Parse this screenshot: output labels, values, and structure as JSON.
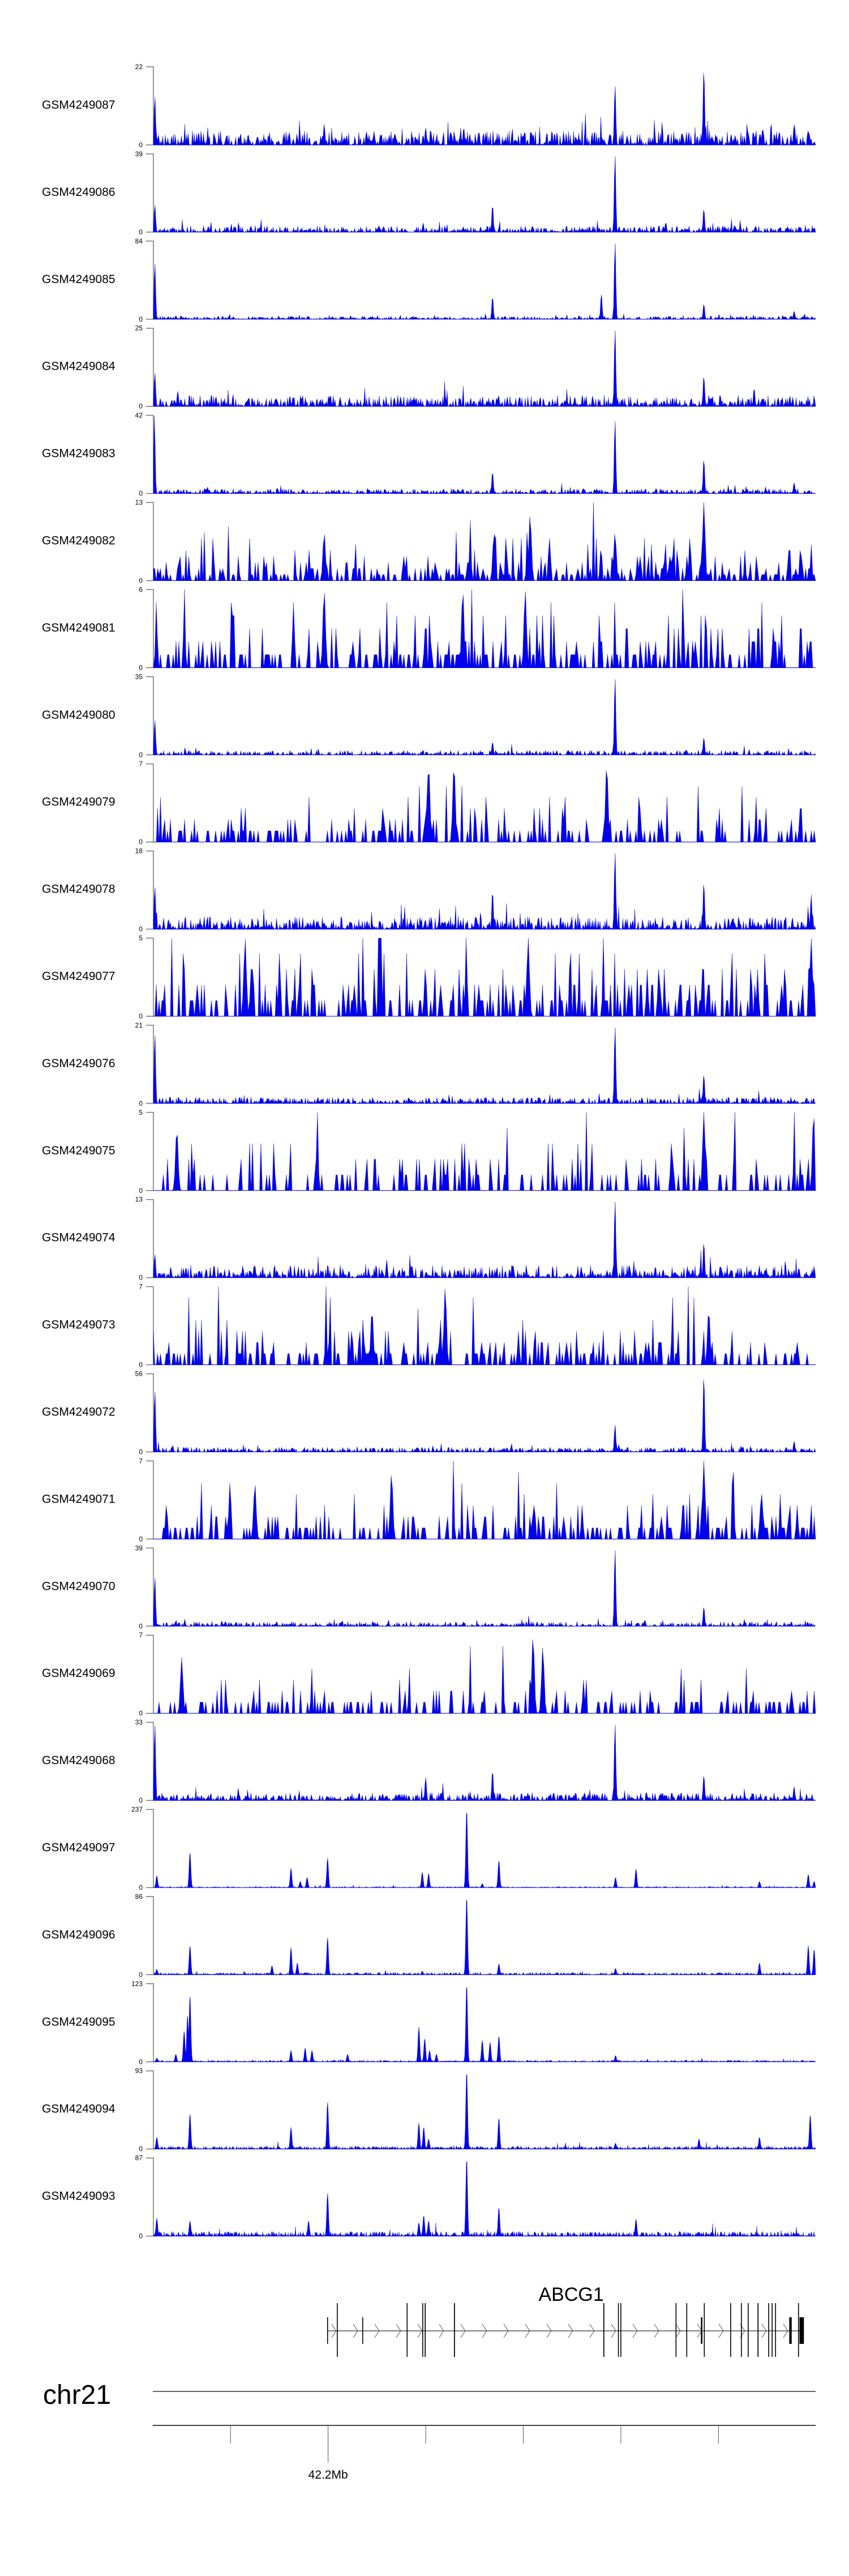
{
  "chart_data": {
    "type": "area",
    "title": "",
    "region": {
      "chrom": "chr21",
      "start_mb": 42.1642,
      "end_mb": 42.2999
    },
    "axis": {
      "ticks_mb": [
        42.18,
        42.2,
        42.22,
        42.24,
        42.26,
        42.28
      ],
      "labeled_tick_mb": 42.2,
      "labeled_tick_text": "42.2Mb"
    },
    "color": "#0000ee",
    "tracks": [
      {
        "name": "GSM4249087",
        "ymax": 22,
        "ymin": 0,
        "style": "chip",
        "noise": 0.09,
        "peaks": [
          [
            42.1645,
            14
          ],
          [
            42.1992,
            6
          ],
          [
            42.22,
            5
          ],
          [
            42.2278,
            5
          ],
          [
            42.2588,
            17
          ],
          [
            42.277,
            22
          ],
          [
            42.2955,
            6
          ]
        ]
      },
      {
        "name": "GSM4249086",
        "ymax": 39,
        "ymin": 0,
        "style": "chip",
        "noise": 0.04,
        "peaks": [
          [
            42.1645,
            14
          ],
          [
            42.2337,
            14
          ],
          [
            42.2588,
            39
          ],
          [
            42.2692,
            5
          ],
          [
            42.277,
            12
          ]
        ]
      },
      {
        "name": "GSM4249085",
        "ymax": 84,
        "ymin": 0,
        "style": "chip",
        "noise": 0.02,
        "peaks": [
          [
            42.1645,
            62
          ],
          [
            42.2337,
            25
          ],
          [
            42.256,
            28
          ],
          [
            42.2588,
            84
          ],
          [
            42.277,
            17
          ],
          [
            42.2955,
            9
          ]
        ]
      },
      {
        "name": "GSM4249084",
        "ymax": 25,
        "ymin": 0,
        "style": "chip",
        "noise": 0.07,
        "peaks": [
          [
            42.1645,
            11
          ],
          [
            42.1692,
            5
          ],
          [
            42.2588,
            25
          ],
          [
            42.277,
            10
          ],
          [
            42.2873,
            6
          ]
        ]
      },
      {
        "name": "GSM4249083",
        "ymax": 42,
        "ymin": 0,
        "style": "chip",
        "noise": 0.03,
        "peaks": [
          [
            42.1644,
            42
          ],
          [
            42.2337,
            12
          ],
          [
            42.2588,
            40
          ],
          [
            42.277,
            19
          ],
          [
            42.2955,
            6
          ]
        ]
      },
      {
        "name": "GSM4249082",
        "ymax": 13,
        "ymin": 0,
        "style": "dense",
        "noise": 1.8,
        "peaks": [
          [
            42.1992,
            8
          ],
          [
            42.234,
            8
          ],
          [
            42.2414,
            11
          ],
          [
            42.2588,
            8
          ],
          [
            42.277,
            13
          ]
        ]
      },
      {
        "name": "GSM4249081",
        "ymax": 6,
        "ymin": 0,
        "style": "dense",
        "noise": 1.3,
        "peaks": [
          [
            42.1992,
            6
          ],
          [
            42.2276,
            6
          ],
          [
            42.2404,
            6
          ]
        ]
      },
      {
        "name": "GSM4249080",
        "ymax": 35,
        "ymin": 0,
        "style": "chip",
        "noise": 0.03,
        "peaks": [
          [
            42.1645,
            16
          ],
          [
            42.2337,
            6
          ],
          [
            42.2588,
            35
          ],
          [
            42.277,
            8
          ]
        ]
      },
      {
        "name": "GSM4249079",
        "ymax": 7,
        "ymin": 0,
        "style": "dense",
        "noise": 1.0,
        "peaks": [
          [
            42.2206,
            7
          ],
          [
            42.2258,
            7
          ],
          [
            42.2571,
            7
          ]
        ]
      },
      {
        "name": "GSM4249078",
        "ymax": 18,
        "ymin": 0,
        "style": "chip",
        "noise": 0.08,
        "peaks": [
          [
            42.1645,
            10
          ],
          [
            42.2337,
            9
          ],
          [
            42.2588,
            18
          ],
          [
            42.277,
            11
          ],
          [
            42.299,
            8
          ]
        ]
      },
      {
        "name": "GSM4249077",
        "ymax": 5,
        "ymin": 0,
        "style": "dense",
        "noise": 1.2,
        "peaks": [
          [
            42.183,
            5
          ],
          [
            42.241,
            5
          ],
          [
            42.299,
            5
          ]
        ]
      },
      {
        "name": "GSM4249076",
        "ymax": 21,
        "ymin": 0,
        "style": "chip",
        "noise": 0.04,
        "peaks": [
          [
            42.1645,
            19
          ],
          [
            42.2588,
            21
          ],
          [
            42.277,
            8
          ]
        ]
      },
      {
        "name": "GSM4249075",
        "ymax": 5,
        "ymin": 0,
        "style": "dense",
        "noise": 0.9,
        "peaks": [
          [
            42.169,
            4
          ],
          [
            42.277,
            5
          ],
          [
            42.2995,
            5
          ]
        ]
      },
      {
        "name": "GSM4249074",
        "ymax": 13,
        "ymin": 0,
        "style": "chip",
        "noise": 0.08,
        "peaks": [
          [
            42.1645,
            4
          ],
          [
            42.2588,
            13
          ],
          [
            42.277,
            6
          ]
        ]
      },
      {
        "name": "GSM4249073",
        "ymax": 7,
        "ymin": 0,
        "style": "dense",
        "noise": 1.1,
        "peaks": [
          [
            42.224,
            7
          ],
          [
            42.209,
            5
          ],
          [
            42.278,
            5
          ]
        ]
      },
      {
        "name": "GSM4249072",
        "ymax": 56,
        "ymin": 0,
        "style": "chip",
        "noise": 0.03,
        "peaks": [
          [
            42.1645,
            45
          ],
          [
            42.2588,
            20
          ],
          [
            42.277,
            56
          ],
          [
            42.2955,
            8
          ]
        ]
      },
      {
        "name": "GSM4249071",
        "ymax": 7,
        "ymin": 0,
        "style": "dense",
        "noise": 1.1,
        "peaks": [
          [
            42.277,
            7
          ],
          [
            42.213,
            6
          ],
          [
            42.185,
            5
          ]
        ]
      },
      {
        "name": "GSM4249070",
        "ymax": 39,
        "ymin": 0,
        "style": "chip",
        "noise": 0.03,
        "peaks": [
          [
            42.1645,
            25
          ],
          [
            42.2588,
            39
          ],
          [
            42.277,
            10
          ]
        ]
      },
      {
        "name": "GSM4249069",
        "ymax": 7,
        "ymin": 0,
        "style": "dense",
        "noise": 0.9,
        "peaks": [
          [
            42.242,
            7
          ],
          [
            42.244,
            6
          ],
          [
            42.17,
            5
          ]
        ]
      },
      {
        "name": "GSM4249068",
        "ymax": 33,
        "ymin": 0,
        "style": "chip",
        "noise": 0.05,
        "peaks": [
          [
            42.1645,
            33
          ],
          [
            42.22,
            10
          ],
          [
            42.2337,
            13
          ],
          [
            42.2588,
            33
          ],
          [
            42.277,
            11
          ],
          [
            42.2955,
            6
          ]
        ]
      },
      {
        "name": "GSM4249097",
        "ymax": 237,
        "ymin": 0,
        "style": "atac",
        "noise": 0.01,
        "peaks": [
          [
            42.1649,
            36
          ],
          [
            42.1717,
            107
          ],
          [
            42.1924,
            59
          ],
          [
            42.1943,
            19
          ],
          [
            42.1957,
            31
          ],
          [
            42.1999,
            90
          ],
          [
            42.2193,
            47
          ],
          [
            42.2206,
            43
          ],
          [
            42.2284,
            237
          ],
          [
            42.2316,
            12
          ],
          [
            42.235,
            83
          ],
          [
            42.2589,
            31
          ],
          [
            42.2631,
            57
          ],
          [
            42.2884,
            19
          ],
          [
            42.2984,
            40
          ],
          [
            42.2996,
            19
          ]
        ]
      },
      {
        "name": "GSM4249096",
        "ymax": 86,
        "ymin": 0,
        "style": "atac",
        "noise": 0.02,
        "peaks": [
          [
            42.1649,
            6
          ],
          [
            42.1717,
            32
          ],
          [
            42.1885,
            10
          ],
          [
            42.1924,
            30
          ],
          [
            42.1937,
            13
          ],
          [
            42.1999,
            41
          ],
          [
            42.2193,
            4
          ],
          [
            42.2284,
            86
          ],
          [
            42.235,
            12
          ],
          [
            42.2589,
            7
          ],
          [
            42.2884,
            13
          ],
          [
            42.2984,
            32
          ],
          [
            42.2996,
            28
          ]
        ]
      },
      {
        "name": "GSM4249095",
        "ymax": 123,
        "ymin": 0,
        "style": "atac",
        "noise": 0.015,
        "peaks": [
          [
            42.1649,
            6
          ],
          [
            42.1688,
            12
          ],
          [
            42.1705,
            49
          ],
          [
            42.1712,
            74
          ],
          [
            42.1717,
            105
          ],
          [
            42.1924,
            18
          ],
          [
            42.1953,
            22
          ],
          [
            42.1967,
            18
          ],
          [
            42.204,
            12
          ],
          [
            42.2186,
            55
          ],
          [
            42.2198,
            37
          ],
          [
            42.2208,
            18
          ],
          [
            42.2222,
            12
          ],
          [
            42.2284,
            123
          ],
          [
            42.2316,
            34
          ],
          [
            42.2332,
            31
          ],
          [
            42.235,
            41
          ],
          [
            42.2589,
            10
          ]
        ]
      },
      {
        "name": "GSM4249094",
        "ymax": 93,
        "ymin": 0,
        "style": "atac",
        "noise": 0.025,
        "peaks": [
          [
            42.1649,
            14
          ],
          [
            42.1717,
            42
          ],
          [
            42.1924,
            26
          ],
          [
            42.1999,
            56
          ],
          [
            42.2186,
            31
          ],
          [
            42.2196,
            26
          ],
          [
            42.2206,
            12
          ],
          [
            42.2284,
            93
          ],
          [
            42.235,
            37
          ],
          [
            42.2589,
            7
          ],
          [
            42.276,
            12
          ],
          [
            42.2884,
            14
          ],
          [
            42.2988,
            41
          ]
        ]
      },
      {
        "name": "GSM4249093",
        "ymax": 87,
        "ymin": 0,
        "style": "atac",
        "noise": 0.04,
        "peaks": [
          [
            42.1649,
            20
          ],
          [
            42.1717,
            17
          ],
          [
            42.196,
            17
          ],
          [
            42.1999,
            48
          ],
          [
            42.2186,
            15
          ],
          [
            42.2196,
            23
          ],
          [
            42.2206,
            17
          ],
          [
            42.2284,
            87
          ],
          [
            42.235,
            32
          ],
          [
            42.2631,
            19
          ]
        ]
      }
    ],
    "gene": {
      "name": "ABCG1",
      "strand": "+",
      "start_mb": 42.1998,
      "end_mb": 42.2975,
      "exons": [
        {
          "start_mb": 42.1998,
          "end_mb": 42.1998,
          "kind": "utr"
        },
        {
          "start_mb": 42.2018,
          "end_mb": 42.2018,
          "kind": "cds"
        },
        {
          "start_mb": 42.207,
          "end_mb": 42.207,
          "kind": "utr"
        },
        {
          "start_mb": 42.2161,
          "end_mb": 42.2161,
          "kind": "cds"
        },
        {
          "start_mb": 42.2193,
          "end_mb": 42.2193,
          "kind": "cds"
        },
        {
          "start_mb": 42.2198,
          "end_mb": 42.22,
          "kind": "cds"
        },
        {
          "start_mb": 42.2258,
          "end_mb": 42.226,
          "kind": "cds"
        },
        {
          "start_mb": 42.2564,
          "end_mb": 42.2566,
          "kind": "cds"
        },
        {
          "start_mb": 42.2594,
          "end_mb": 42.2594,
          "kind": "cds"
        },
        {
          "start_mb": 42.2599,
          "end_mb": 42.2599,
          "kind": "cds"
        },
        {
          "start_mb": 42.2712,
          "end_mb": 42.2712,
          "kind": "cds"
        },
        {
          "start_mb": 42.2734,
          "end_mb": 42.2734,
          "kind": "cds"
        },
        {
          "start_mb": 42.2764,
          "end_mb": 42.2767,
          "kind": "utr"
        },
        {
          "start_mb": 42.277,
          "end_mb": 42.277,
          "kind": "cds"
        },
        {
          "start_mb": 42.2824,
          "end_mb": 42.2824,
          "kind": "cds"
        },
        {
          "start_mb": 42.2846,
          "end_mb": 42.2846,
          "kind": "cds"
        },
        {
          "start_mb": 42.286,
          "end_mb": 42.286,
          "kind": "cds"
        },
        {
          "start_mb": 42.288,
          "end_mb": 42.2882,
          "kind": "cds"
        },
        {
          "start_mb": 42.2902,
          "end_mb": 42.2902,
          "kind": "cds"
        },
        {
          "start_mb": 42.2909,
          "end_mb": 42.2909,
          "kind": "cds"
        },
        {
          "start_mb": 42.2916,
          "end_mb": 42.2916,
          "kind": "cds"
        },
        {
          "start_mb": 42.2945,
          "end_mb": 42.295,
          "kind": "utr"
        },
        {
          "start_mb": 42.2963,
          "end_mb": 42.2963,
          "kind": "cds"
        },
        {
          "start_mb": 42.2966,
          "end_mb": 42.2975,
          "kind": "utr"
        }
      ]
    }
  }
}
